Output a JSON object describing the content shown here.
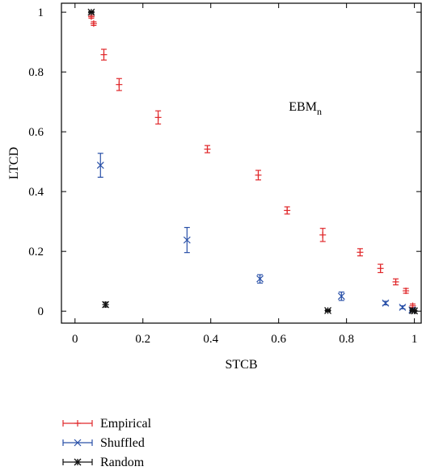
{
  "chart_data": {
    "type": "scatter",
    "xlabel": "STCB",
    "ylabel": "LTCD",
    "xlim": [
      -0.04,
      1.02
    ],
    "ylim": [
      -0.04,
      1.03
    ],
    "xticks": [
      0,
      0.2,
      0.4,
      0.6,
      0.8,
      1
    ],
    "xtick_labels": [
      "0",
      "0.2",
      "0.4",
      "0.6",
      "0.8",
      "1"
    ],
    "yticks": [
      0,
      0.2,
      0.4,
      0.6,
      0.8,
      1
    ],
    "ytick_labels": [
      "0",
      "0.2",
      "0.4",
      "0.6",
      "0.8",
      "1"
    ],
    "grid": false,
    "legend_position": "below-left",
    "annotation": {
      "text": "EBM",
      "subscript": "n",
      "x": 0.63,
      "y": 0.67
    },
    "series": [
      {
        "name": "Empirical",
        "color": "#e0282b",
        "marker": "plus",
        "points": [
          {
            "x": 0.048,
            "y": 0.985,
            "err": 0.005
          },
          {
            "x": 0.055,
            "y": 0.962,
            "err": 0.006
          },
          {
            "x": 0.085,
            "y": 0.858,
            "err": 0.018
          },
          {
            "x": 0.13,
            "y": 0.758,
            "err": 0.02
          },
          {
            "x": 0.245,
            "y": 0.648,
            "err": 0.022
          },
          {
            "x": 0.39,
            "y": 0.542,
            "err": 0.012
          },
          {
            "x": 0.54,
            "y": 0.455,
            "err": 0.016
          },
          {
            "x": 0.625,
            "y": 0.337,
            "err": 0.012
          },
          {
            "x": 0.73,
            "y": 0.255,
            "err": 0.022
          },
          {
            "x": 0.84,
            "y": 0.197,
            "err": 0.012
          },
          {
            "x": 0.9,
            "y": 0.143,
            "err": 0.014
          },
          {
            "x": 0.945,
            "y": 0.098,
            "err": 0.01
          },
          {
            "x": 0.975,
            "y": 0.068,
            "err": 0.008
          },
          {
            "x": 0.995,
            "y": 0.018,
            "err": 0.006
          }
        ]
      },
      {
        "name": "Shuffled",
        "color": "#2950a8",
        "marker": "x",
        "points": [
          {
            "x": 0.075,
            "y": 0.488,
            "err": 0.04
          },
          {
            "x": 0.33,
            "y": 0.238,
            "err": 0.042
          },
          {
            "x": 0.545,
            "y": 0.108,
            "err": 0.014
          },
          {
            "x": 0.785,
            "y": 0.05,
            "err": 0.014
          },
          {
            "x": 0.915,
            "y": 0.027,
            "err": 0.006
          },
          {
            "x": 0.965,
            "y": 0.013,
            "err": 0.005
          },
          {
            "x": 0.993,
            "y": 0.004,
            "err": 0.003
          }
        ]
      },
      {
        "name": "Random",
        "color": "#111111",
        "marker": "star",
        "points": [
          {
            "x": 0.048,
            "y": 1.0,
            "err": 0.003
          },
          {
            "x": 0.09,
            "y": 0.022,
            "err": 0.008
          },
          {
            "x": 0.745,
            "y": 0.002,
            "err": 0.003
          },
          {
            "x": 0.995,
            "y": 0.002,
            "err": 0.003
          },
          {
            "x": 1.0,
            "y": 0.001,
            "err": 0.002
          }
        ]
      }
    ]
  }
}
